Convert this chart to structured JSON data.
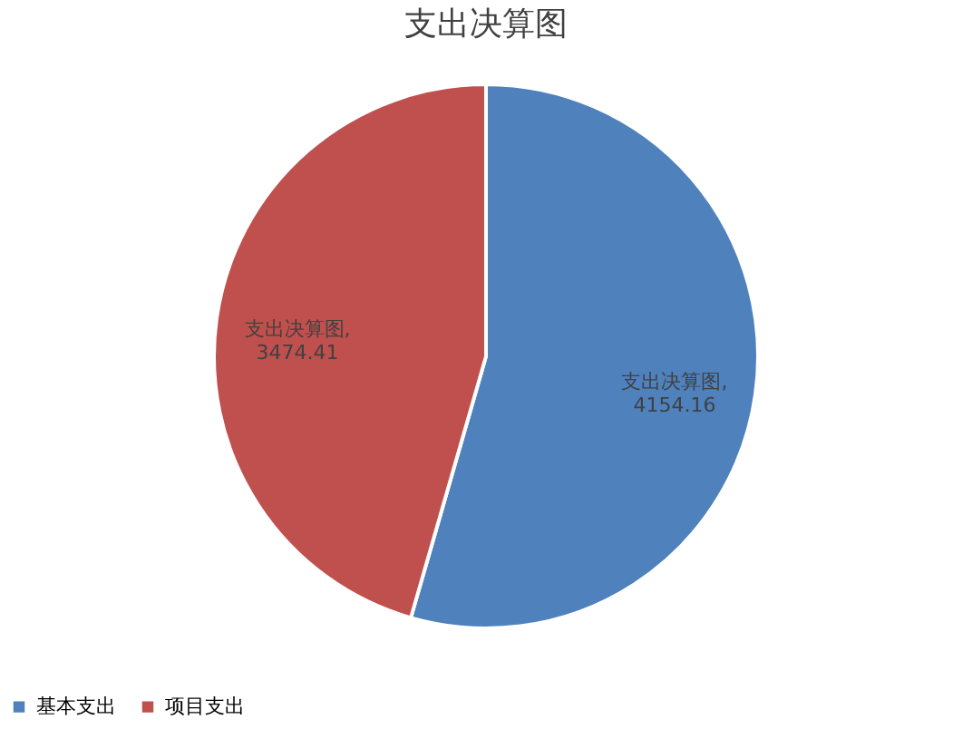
{
  "chart_data": {
    "type": "pie",
    "title": "支出决算图",
    "categories": [
      "基本支出",
      "项目支出"
    ],
    "values": [
      4154.16,
      3474.41
    ],
    "colors": [
      "#4f81bd",
      "#c0504d"
    ],
    "value_labels": [
      "支出决算图,\n4154.16",
      "支出决算图,\n3474.41"
    ],
    "legend": "bottom"
  }
}
